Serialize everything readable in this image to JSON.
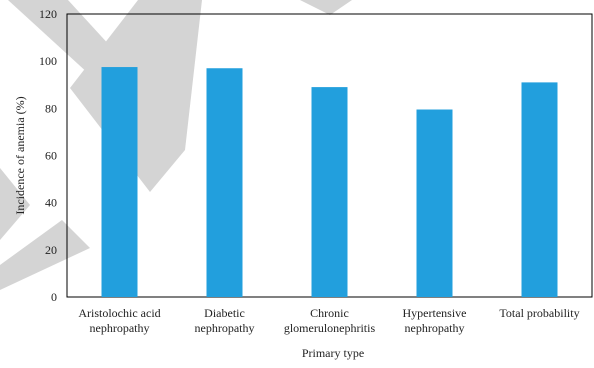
{
  "chart_data": {
    "type": "bar",
    "categories": [
      [
        "Aristolochic acid",
        "nephropathy"
      ],
      [
        "Diabetic",
        "nephropathy"
      ],
      [
        "Chronic",
        "glomerulonephritis"
      ],
      [
        "Hypertensive",
        "nephropathy"
      ],
      [
        "Total probability"
      ]
    ],
    "values": [
      97.5,
      97,
      89,
      79.5,
      91
    ],
    "xlabel": "Primary type",
    "ylabel": "Incidence of anemia (%)",
    "ylim": [
      0,
      120
    ],
    "yticks": [
      0,
      20,
      40,
      60,
      80,
      100,
      120
    ],
    "bar_color": "#229fdd",
    "watermark_color": "#d4d4d4",
    "grid": false
  }
}
